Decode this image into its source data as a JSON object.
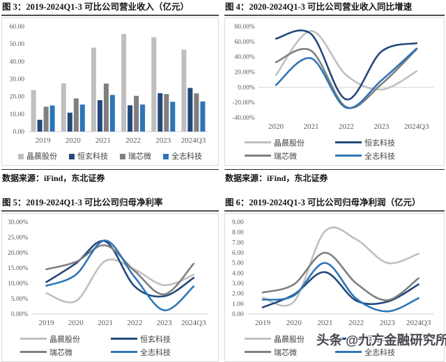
{
  "watermark": "头条 @九方金融研究所",
  "source_label": "数据来源：iFind，东北证券",
  "brand_colors": {
    "jingchen_gray": "#BFBFBF",
    "hengxuan_navy": "#24487A",
    "ruixinwei_gray": "#7F7F7F",
    "quanzhi_blue": "#2E75B6"
  },
  "chart_data": [
    {
      "type": "bar",
      "title": "图 3：2019-2024Q1-3 可比公司营业收入（亿元）",
      "source": "数据来源：iFind，东北证券",
      "categories": [
        "2019",
        "2020",
        "2021",
        "2022",
        "2023",
        "2024Q3"
      ],
      "series": [
        {
          "name": "晶晨股份",
          "color": "#BFBFBF",
          "values": [
            23.7,
            27.5,
            47.9,
            55.7,
            53.9,
            46.8
          ]
        },
        {
          "name": "恒玄科技",
          "color": "#24487A",
          "values": [
            6.7,
            10.8,
            17.9,
            15.0,
            21.9,
            24.9
          ]
        },
        {
          "name": "瑞芯微",
          "color": "#7F7F7F",
          "values": [
            14.2,
            18.9,
            27.4,
            20.4,
            21.4,
            21.8
          ]
        },
        {
          "name": "全志科技",
          "color": "#2E75B6",
          "values": [
            14.9,
            15.4,
            20.9,
            15.4,
            17.0,
            17.2
          ]
        }
      ],
      "ylim": [
        0,
        60
      ],
      "yticks": [
        {
          "v": 0,
          "label": "0.00"
        },
        {
          "v": 10,
          "label": "10.00"
        },
        {
          "v": 20,
          "label": "20.00"
        },
        {
          "v": 30,
          "label": "30.00"
        },
        {
          "v": 40,
          "label": "40.00"
        },
        {
          "v": 50,
          "label": "50.00"
        },
        {
          "v": 60,
          "label": "60.00"
        }
      ],
      "legend_style": "square",
      "grid": "zero-line-only",
      "legend_position": "bottom"
    },
    {
      "type": "line",
      "title": "图 4：2020-2024Q1-3 可比公司营业收入同比增速",
      "source": "数据来源：iFind，东北证券",
      "categories": [
        "2020",
        "2021",
        "2022",
        "2023",
        "2024Q3"
      ],
      "series": [
        {
          "name": "晶晨股份",
          "color": "#BFBFBF",
          "values": [
            16,
            74,
            16,
            -3,
            21
          ]
        },
        {
          "name": "恒玄科技",
          "color": "#24487A",
          "values": [
            64,
            70,
            -16,
            47,
            58
          ]
        },
        {
          "name": "瑞芯微",
          "color": "#7F7F7F",
          "values": [
            33,
            48,
            -26,
            4,
            50
          ]
        },
        {
          "name": "全志科技",
          "color": "#2E75B6",
          "values": [
            3,
            38,
            -27,
            9,
            51
          ]
        }
      ],
      "ylim": [
        -40,
        80
      ],
      "yticks": [
        {
          "v": -40,
          "label": "-40.00%"
        },
        {
          "v": -20,
          "label": "-20.00%"
        },
        {
          "v": 0,
          "label": "0.00%"
        },
        {
          "v": 20,
          "label": "20.00%"
        },
        {
          "v": 40,
          "label": "40.00%"
        },
        {
          "v": 60,
          "label": "60.00%"
        },
        {
          "v": 80,
          "label": "80.00%"
        }
      ],
      "legend_style": "line",
      "grid": "zero-line-only",
      "legend_position": "bottom"
    },
    {
      "type": "line",
      "title": "图 5：2019-2024Q1-3 可比公司归母净利率",
      "source": "数据来源：iFind，东北证券",
      "categories": [
        "2019",
        "2020",
        "2021",
        "2022",
        "2023",
        "2024Q3"
      ],
      "series": [
        {
          "name": "晶晨股份",
          "color": "#BFBFBF",
          "values": [
            6.8,
            4.2,
            17.3,
            14.5,
            9.4,
            12.8
          ]
        },
        {
          "name": "恒玄科技",
          "color": "#24487A",
          "values": [
            10.4,
            16.5,
            23.7,
            9.0,
            5.8,
            11.8
          ]
        },
        {
          "name": "瑞芯微",
          "color": "#7F7F7F",
          "values": [
            14.6,
            17.0,
            22.4,
            14.0,
            6.4,
            16.4
          ]
        },
        {
          "name": "全志科技",
          "color": "#2E75B6",
          "values": [
            9.2,
            12.8,
            24.0,
            12.0,
            1.2,
            9.0
          ]
        }
      ],
      "ylim": [
        0,
        30
      ],
      "yticks": [
        {
          "v": 0,
          "label": "0.00%"
        },
        {
          "v": 5,
          "label": "5.00%"
        },
        {
          "v": 10,
          "label": "10.00%"
        },
        {
          "v": 15,
          "label": "15.00%"
        },
        {
          "v": 20,
          "label": "20.00%"
        },
        {
          "v": 25,
          "label": "25.00%"
        },
        {
          "v": 30,
          "label": "30.00%"
        }
      ],
      "legend_style": "line",
      "grid": "zero-line-only",
      "legend_position": "bottom"
    },
    {
      "type": "line",
      "title": "图 6：2019-2024Q1-3 可比公司归母净利润（亿元）",
      "source": "数据来源：iFind，东北证券",
      "categories": [
        "2019",
        "2020",
        "2021",
        "2022",
        "2023",
        "2024Q3"
      ],
      "series": [
        {
          "name": "晶晨股份",
          "color": "#BFBFBF",
          "values": [
            1.6,
            1.2,
            8.1,
            7.3,
            5.0,
            5.9
          ]
        },
        {
          "name": "恒玄科技",
          "color": "#24487A",
          "values": [
            0.65,
            1.9,
            4.1,
            1.3,
            1.2,
            2.9
          ]
        },
        {
          "name": "瑞芯微",
          "color": "#7F7F7F",
          "values": [
            2.1,
            2.9,
            6.0,
            3.0,
            1.35,
            3.5
          ]
        },
        {
          "name": "全志科技",
          "color": "#2E75B6",
          "values": [
            1.4,
            1.8,
            5.0,
            1.5,
            0.25,
            1.55
          ]
        }
      ],
      "ylim": [
        0,
        9
      ],
      "yticks": [
        {
          "v": 0,
          "label": "0.00"
        },
        {
          "v": 1,
          "label": "1.00"
        },
        {
          "v": 2,
          "label": "2.00"
        },
        {
          "v": 3,
          "label": "3.00"
        },
        {
          "v": 4,
          "label": "4.00"
        },
        {
          "v": 5,
          "label": "5.00"
        },
        {
          "v": 6,
          "label": "6.00"
        },
        {
          "v": 7,
          "label": "7.00"
        },
        {
          "v": 8,
          "label": "8.00"
        },
        {
          "v": 9,
          "label": "9.00"
        }
      ],
      "legend_style": "line",
      "grid": "zero-line-only",
      "legend_position": "bottom"
    }
  ]
}
